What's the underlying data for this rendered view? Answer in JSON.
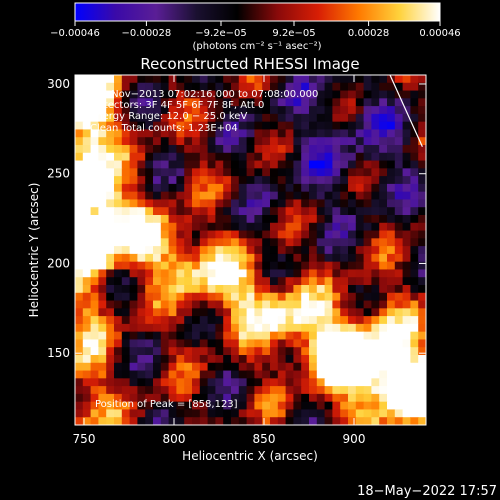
{
  "chart_data": {
    "type": "heatmap",
    "title": "Reconstructed RHESSI Image",
    "xlabel": "Heliocentric X (arcsec)",
    "ylabel": "Heliocentric Y (arcsec)",
    "xlim": [
      745,
      940
    ],
    "ylim": [
      110,
      305
    ],
    "x_ticks": [
      750,
      800,
      850,
      900
    ],
    "y_ticks": [
      150,
      200,
      250,
      300
    ],
    "colorbar": {
      "range": [
        -0.00046,
        0.00046
      ],
      "ticks": [
        {
          "value": -0.00046,
          "label": "−0.00046"
        },
        {
          "value": -0.00028,
          "label": "−0.00028"
        },
        {
          "value": -9.2e-05,
          "label": "−9.2e−05"
        },
        {
          "value": 9.2e-05,
          "label": "9.2e−05"
        },
        {
          "value": 0.00028,
          "label": "0.00028"
        },
        {
          "value": 0.00046,
          "label": "0.00046"
        }
      ],
      "unit_label": "(photons cm⁻² s⁻¹ asec⁻²)",
      "palette": [
        "#0000ff",
        "#3a0aa8",
        "#5a1e96",
        "#1a1030",
        "#000000",
        "#8a0a0a",
        "#d81e05",
        "#ff7a00",
        "#ffd23c",
        "#ffffff"
      ]
    },
    "annotations": {
      "time_range": "23−Nov−2013 07:02:16.000 to 07:08:00.000",
      "detectors": "Detectors: 3F 4F 5F 6F 7F 8F, Att 0",
      "energy_range": "Energy Range: 12.0 − 25.0 keV",
      "method": "Clean     Total counts: 1.23E+04",
      "peak": "Position of Peak = [858,123]"
    },
    "peak": {
      "x": 858,
      "y": 123
    },
    "limb_line": [
      [
        920,
        305
      ],
      [
        938,
        265
      ]
    ]
  },
  "footer": {
    "timestamp": "18−May−2022 17:57"
  }
}
